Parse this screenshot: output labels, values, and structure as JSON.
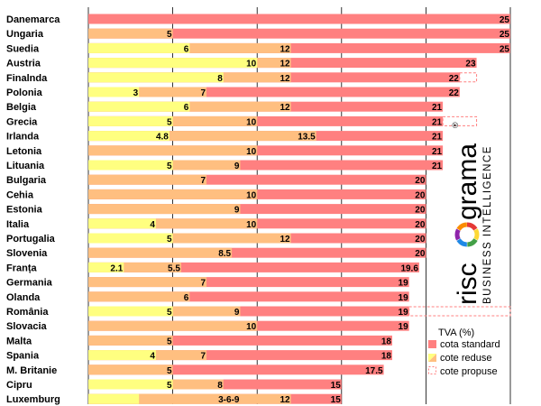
{
  "colors": {
    "standard": "#ff8080",
    "reduced_low": "#ffff80",
    "reduced_high": "#ffbf80",
    "proposed_outline": "#ff8080",
    "grid": "#000000"
  },
  "logo": {
    "word1": "risc",
    "word2": "grama",
    "registered": "®",
    "tagline": "BUSINESS INTELLIGENCE"
  },
  "chart_data": {
    "type": "bar",
    "orientation": "horizontal",
    "stacked_overlay": true,
    "xlim": [
      0,
      25
    ],
    "grid": "vertical",
    "legend_position": "bottom-right",
    "legend_title": "TVA (%)",
    "legend": [
      {
        "key": "standard",
        "label": "cota standard"
      },
      {
        "key": "reduced",
        "label": "cote reduse"
      },
      {
        "key": "proposed",
        "label": "cote propuse"
      }
    ],
    "rows": [
      {
        "country": "Danemarca",
        "standard": 25,
        "reduced": []
      },
      {
        "country": "Ungaria",
        "standard": 25,
        "reduced": [
          5
        ]
      },
      {
        "country": "Suedia",
        "standard": 25,
        "reduced": [
          6,
          12
        ]
      },
      {
        "country": "Austria",
        "standard": 23,
        "reduced": [
          10,
          12
        ]
      },
      {
        "country": "Finalnda",
        "standard": 22,
        "reduced": [
          8,
          12
        ],
        "proposed": 23
      },
      {
        "country": "Polonia",
        "standard": 22,
        "reduced": [
          3,
          7
        ]
      },
      {
        "country": "Belgia",
        "standard": 21,
        "reduced": [
          6,
          12
        ]
      },
      {
        "country": "Grecia",
        "standard": 21,
        "reduced": [
          5,
          10
        ],
        "proposed": 23
      },
      {
        "country": "Irlanda",
        "standard": 21,
        "reduced": [
          4.8,
          13.5
        ]
      },
      {
        "country": "Letonia",
        "standard": 21,
        "reduced": [
          10
        ]
      },
      {
        "country": "Lituania",
        "standard": 21,
        "reduced": [
          5,
          9
        ]
      },
      {
        "country": "Bulgaria",
        "standard": 20,
        "reduced": [
          7
        ]
      },
      {
        "country": "Cehia",
        "standard": 20,
        "reduced": [
          10
        ]
      },
      {
        "country": "Estonia",
        "standard": 20,
        "reduced": [
          9
        ]
      },
      {
        "country": "Italia",
        "standard": 20,
        "reduced": [
          4,
          10
        ]
      },
      {
        "country": "Portugalia",
        "standard": 20,
        "reduced": [
          5,
          12
        ]
      },
      {
        "country": "Slovenia",
        "standard": 20,
        "reduced": [
          8.5
        ]
      },
      {
        "country": "Franța",
        "standard": 19.6,
        "reduced": [
          2.1,
          5.5
        ]
      },
      {
        "country": "Germania",
        "standard": 19,
        "reduced": [
          7
        ]
      },
      {
        "country": "Olanda",
        "standard": 19,
        "reduced": [
          6
        ]
      },
      {
        "country": "România",
        "standard": 19,
        "reduced": [
          5,
          9
        ],
        "proposed": 25
      },
      {
        "country": "Slovacia",
        "standard": 19,
        "reduced": [
          10
        ]
      },
      {
        "country": "Malta",
        "standard": 18,
        "reduced": [
          5
        ]
      },
      {
        "country": "Spania",
        "standard": 18,
        "reduced": [
          4,
          7
        ]
      },
      {
        "country": "M. Britanie",
        "standard": 17.5,
        "reduced": [
          5
        ]
      },
      {
        "country": "Cipru",
        "standard": 15,
        "reduced": [
          5,
          8
        ]
      },
      {
        "country": "Luxemburg",
        "standard": 15,
        "reduced": [
          3,
          6,
          9,
          12
        ],
        "reduced_label": "3-6-9"
      }
    ]
  }
}
